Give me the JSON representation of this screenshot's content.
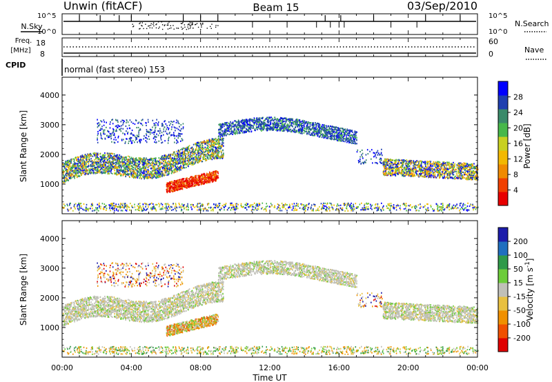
{
  "header": {
    "title": "Unwin (fitACF)",
    "beam": "Beam 15",
    "date": "03/Sep/2010"
  },
  "strip": {
    "nsky_label": "N.Sky",
    "nsky_ticks": [
      "10^5",
      "10^0"
    ],
    "nsearch_label": "N.Search",
    "nsearch_ticks": [
      "10^5",
      "10^0"
    ],
    "freq_label": "Freq.",
    "freq_unit": "[MHz]",
    "freq_ticks": [
      "18",
      "8"
    ],
    "nave_label": "Nave",
    "nave_ticks": [
      "60",
      "0"
    ],
    "cpid_label": "CPID",
    "cpid_text": "normal (fast stereo) 153"
  },
  "colors": {
    "power_scale": [
      "#0000ff",
      "#1f3fb0",
      "#3a8a6a",
      "#47b84a",
      "#c8d020",
      "#f2b800",
      "#f08a00",
      "#f04000",
      "#e80000"
    ],
    "velocity_scale": [
      "#1c1caa",
      "#1f6fbf",
      "#2f9a4a",
      "#6ccc3a",
      "#c0c0b8",
      "#e8c040",
      "#f09000",
      "#f05000",
      "#e00000"
    ]
  },
  "chart_data": [
    {
      "type": "heatmap",
      "panel": "power",
      "ylabel": "Slant Range [km]",
      "ylim": [
        0,
        4600
      ],
      "yticks": [
        "1000",
        "2000",
        "3000",
        "4000"
      ],
      "xlim_hours": [
        0,
        24
      ],
      "xticks": [
        "00:00",
        "04:00",
        "08:00",
        "12:00",
        "16:00",
        "20:00",
        "00:00"
      ],
      "colorbar_label": "Power [dB]",
      "colorbar_ticks": [
        "4",
        "8",
        "12",
        "16",
        "20",
        "24",
        "28"
      ],
      "colorbar_range": [
        0,
        32
      ]
    },
    {
      "type": "heatmap",
      "panel": "velocity",
      "ylabel": "Slant Range [km]",
      "ylim": [
        0,
        4600
      ],
      "yticks": [
        "1000",
        "2000",
        "3000",
        "4000"
      ],
      "xlim_hours": [
        0,
        24
      ],
      "xticks": [
        "00:00",
        "04:00",
        "08:00",
        "12:00",
        "16:00",
        "20:00",
        "00:00"
      ],
      "xlabel": "Time UT",
      "colorbar_label_main": "Velocity [m s",
      "colorbar_label_sup": "-1",
      "colorbar_label_end": "]",
      "colorbar_ticks": [
        "200",
        "100",
        "50",
        "15",
        "-15",
        "-50",
        "-100",
        "-200"
      ]
    }
  ]
}
